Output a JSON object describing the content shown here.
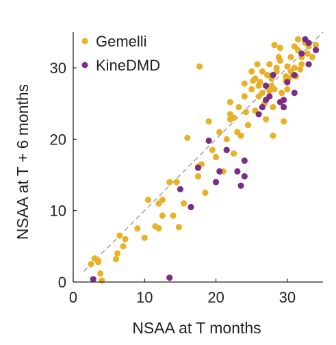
{
  "chart_data": {
    "type": "scatter",
    "title": "",
    "xlabel": "NSAA at T months",
    "ylabel": "NSAA at T + 6 months",
    "xlim": [
      0,
      35
    ],
    "ylim": [
      0,
      35
    ],
    "xticks": [
      0,
      10,
      20,
      30
    ],
    "yticks": [
      0,
      10,
      20,
      30
    ],
    "grid": false,
    "legend_position": "top-left",
    "reference_line": "identity (y = x), dashed gray",
    "series": [
      {
        "name": "Gemelli",
        "color": "#E8B127",
        "points": [
          [
            2.5,
            2.5
          ],
          [
            3,
            3.3
          ],
          [
            3.5,
            3
          ],
          [
            3.8,
            1.2
          ],
          [
            4,
            0.2
          ],
          [
            3.5,
            2.8
          ],
          [
            6,
            3.2
          ],
          [
            6.2,
            4
          ],
          [
            6.5,
            6.5
          ],
          [
            7,
            5
          ],
          [
            7.3,
            6
          ],
          [
            9,
            7.5
          ],
          [
            10,
            6.2
          ],
          [
            10.5,
            11.5
          ],
          [
            11.5,
            7.8
          ],
          [
            12,
            7.5
          ],
          [
            12,
            11
          ],
          [
            12.5,
            9.3
          ],
          [
            12.5,
            11.5
          ],
          [
            13.5,
            14
          ],
          [
            14,
            9.3
          ],
          [
            14.5,
            14
          ],
          [
            14.8,
            7.7
          ],
          [
            15.5,
            11
          ],
          [
            16,
            20.2
          ],
          [
            17.5,
            14.8
          ],
          [
            17.5,
            16.2
          ],
          [
            17.7,
            30.2
          ],
          [
            18,
            16.5
          ],
          [
            18.5,
            12.5
          ],
          [
            19,
            22.5
          ],
          [
            19.5,
            18.5
          ],
          [
            20,
            17.5
          ],
          [
            20.5,
            21
          ],
          [
            21,
            15.5
          ],
          [
            21.5,
            20
          ],
          [
            22,
            23.5
          ],
          [
            22,
            22.8
          ],
          [
            22,
            25.2
          ],
          [
            22.5,
            18
          ],
          [
            22.5,
            23
          ],
          [
            23,
            21
          ],
          [
            23.2,
            24.5
          ],
          [
            23.5,
            20.5
          ],
          [
            24,
            26
          ],
          [
            24,
            27.8
          ],
          [
            24.2,
            23.8
          ],
          [
            24.5,
            22
          ],
          [
            25,
            27
          ],
          [
            25,
            29.5
          ],
          [
            25.5,
            24
          ],
          [
            25.5,
            28.5
          ],
          [
            25.8,
            30.5
          ],
          [
            26,
            26
          ],
          [
            26,
            27.5
          ],
          [
            26.2,
            28
          ],
          [
            26.5,
            26.5
          ],
          [
            26.8,
            25
          ],
          [
            27,
            22.8
          ],
          [
            27,
            27.5
          ],
          [
            27.2,
            29
          ],
          [
            27.5,
            30.5
          ],
          [
            27.5,
            26.8
          ],
          [
            27.8,
            28.5
          ],
          [
            28,
            20.5
          ],
          [
            28,
            24.5
          ],
          [
            28.2,
            27
          ],
          [
            28.5,
            30
          ],
          [
            28.5,
            29.5
          ],
          [
            28.8,
            31.5
          ],
          [
            29,
            31
          ],
          [
            29,
            32.8
          ],
          [
            29.2,
            26.5
          ],
          [
            29.5,
            22.5
          ],
          [
            29.5,
            25.5
          ],
          [
            29.8,
            28.2
          ],
          [
            30,
            30.2
          ],
          [
            30,
            27
          ],
          [
            30.5,
            29.5
          ],
          [
            30.5,
            31.5
          ],
          [
            31,
            33
          ],
          [
            31,
            30
          ],
          [
            31.5,
            32.5
          ],
          [
            31.5,
            34
          ],
          [
            32,
            31.5
          ],
          [
            32,
            30.5
          ],
          [
            32.5,
            33.5
          ],
          [
            32.8,
            32
          ],
          [
            33,
            33
          ],
          [
            33.5,
            31.5
          ],
          [
            34,
            33.2
          ],
          [
            31.8,
            29.8
          ],
          [
            30.8,
            29
          ],
          [
            26.5,
            29.5
          ],
          [
            28.2,
            33.2
          ],
          [
            29.8,
            28.8
          ],
          [
            30.2,
            28.5
          ],
          [
            31.2,
            28.8
          ],
          [
            25.2,
            28.2
          ],
          [
            27.8,
            27.5
          ]
        ]
      },
      {
        "name": "KineDMD",
        "color": "#7B2D86",
        "points": [
          [
            2.8,
            0.4
          ],
          [
            13.5,
            0.6
          ],
          [
            16.5,
            10.5
          ],
          [
            15,
            13
          ],
          [
            17.5,
            16
          ],
          [
            19,
            19.8
          ],
          [
            20,
            14
          ],
          [
            20.5,
            15.5
          ],
          [
            21.5,
            18.5
          ],
          [
            23,
            15.5
          ],
          [
            23.5,
            13.5
          ],
          [
            24,
            17
          ],
          [
            24,
            14.8
          ],
          [
            26,
            23.5
          ],
          [
            26.5,
            24.5
          ],
          [
            27,
            27.5
          ],
          [
            27,
            25.5
          ],
          [
            27.5,
            26
          ],
          [
            28,
            29
          ],
          [
            29,
            25.2
          ],
          [
            29.5,
            25.5
          ],
          [
            29.5,
            24.5
          ],
          [
            30,
            28
          ],
          [
            31,
            26.5
          ],
          [
            31,
            29
          ],
          [
            32,
            32
          ],
          [
            32.5,
            34
          ],
          [
            33,
            33.5
          ],
          [
            33,
            30.5
          ],
          [
            34,
            32.5
          ]
        ]
      }
    ]
  }
}
